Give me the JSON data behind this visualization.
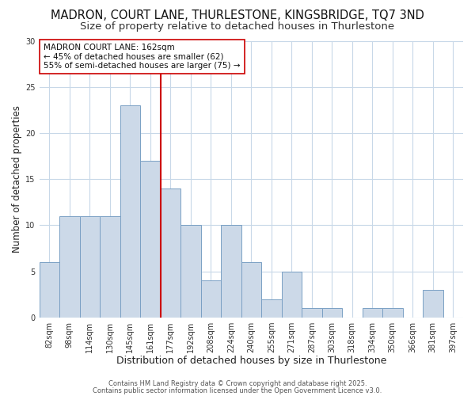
{
  "title1": "MADRON, COURT LANE, THURLESTONE, KINGSBRIDGE, TQ7 3ND",
  "title2": "Size of property relative to detached houses in Thurlestone",
  "xlabel": "Distribution of detached houses by size in Thurlestone",
  "ylabel": "Number of detached properties",
  "categories": [
    "82sqm",
    "98sqm",
    "114sqm",
    "130sqm",
    "145sqm",
    "161sqm",
    "177sqm",
    "192sqm",
    "208sqm",
    "224sqm",
    "240sqm",
    "255sqm",
    "271sqm",
    "287sqm",
    "303sqm",
    "318sqm",
    "334sqm",
    "350sqm",
    "366sqm",
    "381sqm",
    "397sqm"
  ],
  "values": [
    6,
    11,
    11,
    11,
    23,
    17,
    14,
    10,
    4,
    10,
    6,
    2,
    5,
    1,
    1,
    0,
    1,
    1,
    0,
    3,
    0
  ],
  "bar_color": "#ccd9e8",
  "bar_edge_color": "#7aa0c4",
  "vline_x_index": 5,
  "vline_color": "#cc0000",
  "ylim": [
    0,
    30
  ],
  "yticks": [
    0,
    5,
    10,
    15,
    20,
    25,
    30
  ],
  "annotation_title": "MADRON COURT LANE: 162sqm",
  "annotation_line1": "← 45% of detached houses are smaller (62)",
  "annotation_line2": "55% of semi-detached houses are larger (75) →",
  "annotation_box_color": "#ffffff",
  "annotation_box_edge": "#cc0000",
  "bg_color": "#ffffff",
  "plot_bg_color": "#ffffff",
  "grid_color": "#c8d8e8",
  "footer1": "Contains HM Land Registry data © Crown copyright and database right 2025.",
  "footer2": "Contains public sector information licensed under the Open Government Licence v3.0.",
  "title1_fontsize": 10.5,
  "title2_fontsize": 9.5,
  "xlabel_fontsize": 9,
  "ylabel_fontsize": 8.5,
  "tick_fontsize": 7,
  "annotation_fontsize": 7.5,
  "footer_fontsize": 6
}
